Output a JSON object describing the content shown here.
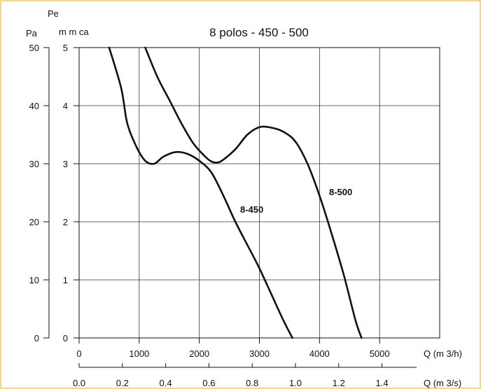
{
  "chart_data": {
    "type": "line",
    "title": "8 polos - 450 - 500",
    "left_axis": {
      "label": "Pa",
      "ylim": [
        0,
        50
      ],
      "ticks": [
        "0",
        "10",
        "20",
        "30",
        "40",
        "50"
      ]
    },
    "right_axis": {
      "label": "Pe",
      "unit": "m m ca",
      "ylim": [
        0,
        5
      ],
      "ticks": [
        "0",
        "1",
        "2",
        "3",
        "4",
        "5"
      ]
    },
    "x_axis": {
      "label": "Q  (m 3/h)",
      "xlim": [
        0,
        6000
      ],
      "ticks": [
        "0",
        "1000",
        "2000",
        "3000",
        "4000",
        "5000"
      ]
    },
    "x_axis_secondary": {
      "label": "Q  (m 3/s)",
      "xlim": [
        0,
        1.667
      ],
      "ticks": [
        "0.0",
        "0.2",
        "0.4",
        "0.6",
        "0.8",
        "1.0",
        "1.2",
        "1.4"
      ]
    },
    "grid": true,
    "series": [
      {
        "name": "8-450",
        "x": [
          500,
          700,
          800,
          950,
          1100,
          1250,
          1400,
          1600,
          1800,
          2000,
          2200,
          2400,
          2600,
          2800,
          3000,
          3200,
          3400,
          3550
        ],
        "y": [
          5.0,
          4.3,
          3.7,
          3.3,
          3.05,
          3.0,
          3.12,
          3.2,
          3.17,
          3.05,
          2.85,
          2.45,
          2.0,
          1.6,
          1.2,
          0.75,
          0.3,
          0.0
        ]
      },
      {
        "name": "8-500",
        "x": [
          1100,
          1300,
          1500,
          1700,
          1900,
          2100,
          2200,
          2300,
          2400,
          2600,
          2800,
          3000,
          3200,
          3400,
          3600,
          3800,
          4000,
          4200,
          4400,
          4600,
          4700
        ],
        "y": [
          5.0,
          4.5,
          4.1,
          3.7,
          3.35,
          3.12,
          3.04,
          3.02,
          3.07,
          3.25,
          3.5,
          3.63,
          3.62,
          3.55,
          3.38,
          3.0,
          2.45,
          1.8,
          1.1,
          0.3,
          0.0
        ]
      }
    ]
  }
}
